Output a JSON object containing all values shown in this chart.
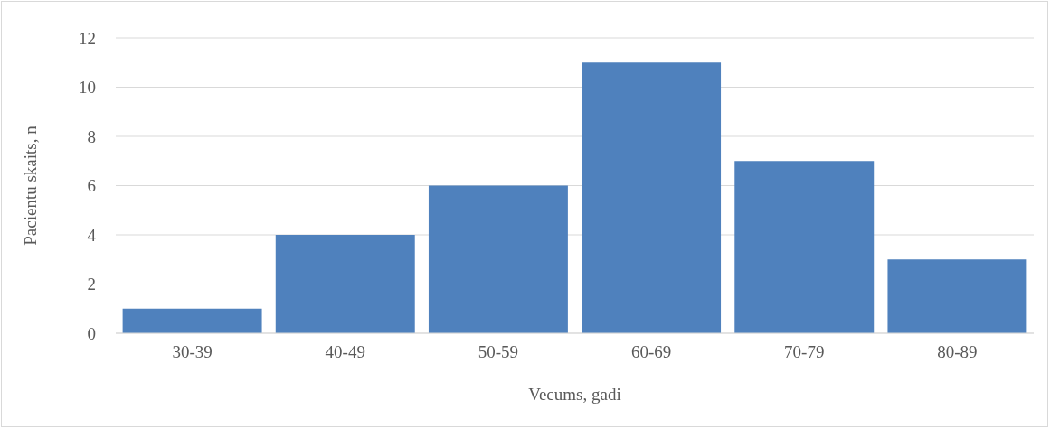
{
  "chart_data": {
    "type": "bar",
    "xlabel": "Vecums, gadi",
    "ylabel": "Pacientu skaits, n",
    "categories": [
      "30-39",
      "40-49",
      "50-59",
      "60-69",
      "70-79",
      "80-89"
    ],
    "values": [
      1,
      4,
      6,
      11,
      7,
      3
    ],
    "color": "#4f81bd",
    "ylim": [
      0,
      12
    ],
    "yticks": [
      0,
      2,
      4,
      6,
      8,
      10,
      12
    ],
    "grid": "y"
  }
}
